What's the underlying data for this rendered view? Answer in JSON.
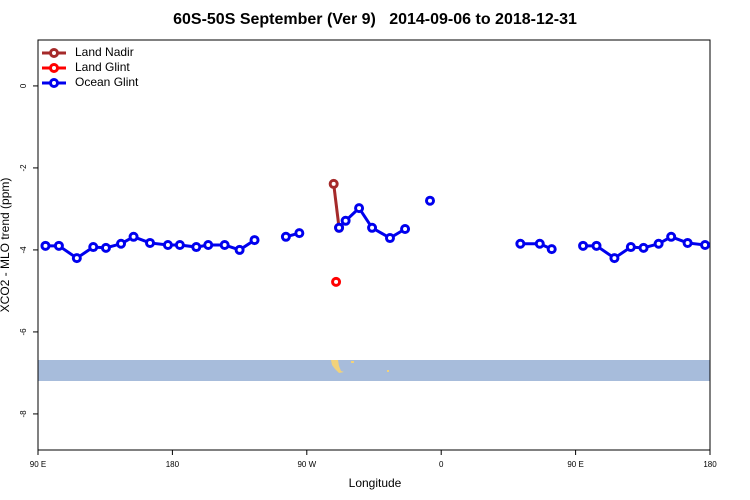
{
  "chart_data": {
    "type": "line",
    "title": "60S-50S September (Ver 9)   2014-09-06 to 2018-12-31",
    "x_label": "Longitude",
    "y_label": "XCO2 - MLO trend (ppm)",
    "xlim": [
      90,
      540
    ],
    "xticks": [
      {
        "value": 90,
        "label": "90 E"
      },
      {
        "value": 180,
        "label": "180"
      },
      {
        "value": 270,
        "label": "90 W"
      },
      {
        "value": 360,
        "label": "0"
      },
      {
        "value": 450,
        "label": "90 E"
      },
      {
        "value": 540,
        "label": "180"
      }
    ],
    "ylim": [
      -8.88,
      1.12
    ],
    "yticks": [
      0,
      -2,
      -4,
      -6,
      -8
    ],
    "legend": "upper left",
    "series": [
      {
        "name": "Land Nadir",
        "color": "#a52a2a",
        "x": [
          288,
          291.6
        ],
        "values": [
          -2.39,
          -3.46
        ]
      },
      {
        "name": "Land Glint",
        "color": "#ff0000",
        "x": [
          289.6
        ],
        "values": [
          -4.78
        ]
      },
      {
        "name": "Ocean Glint",
        "color": "#0000ee",
        "x": [
          95,
          104,
          116,
          127,
          135.5,
          145.6,
          154,
          165,
          177,
          185,
          196,
          204,
          215,
          225,
          235,
          null,
          256,
          265,
          null,
          291.6,
          296,
          305,
          313.7,
          325.7,
          335.8,
          null,
          352.5,
          null,
          413,
          426,
          434,
          null,
          455,
          464,
          476,
          487,
          495.5,
          505.6,
          514,
          525,
          536.7
        ],
        "values": [
          -3.9,
          -3.9,
          -4.2,
          -3.93,
          -3.95,
          -3.85,
          -3.68,
          -3.83,
          -3.88,
          -3.88,
          -3.93,
          -3.88,
          -3.88,
          -4.0,
          -3.76,
          null,
          -3.68,
          -3.59,
          null,
          -3.46,
          -3.29,
          -2.98,
          -3.46,
          -3.71,
          -3.49,
          null,
          -2.8,
          null,
          -3.85,
          -3.85,
          -3.98,
          null,
          -3.9,
          -3.9,
          -4.2,
          -3.93,
          -3.95,
          -3.85,
          -3.68,
          -3.83,
          -3.88
        ]
      }
    ]
  }
}
